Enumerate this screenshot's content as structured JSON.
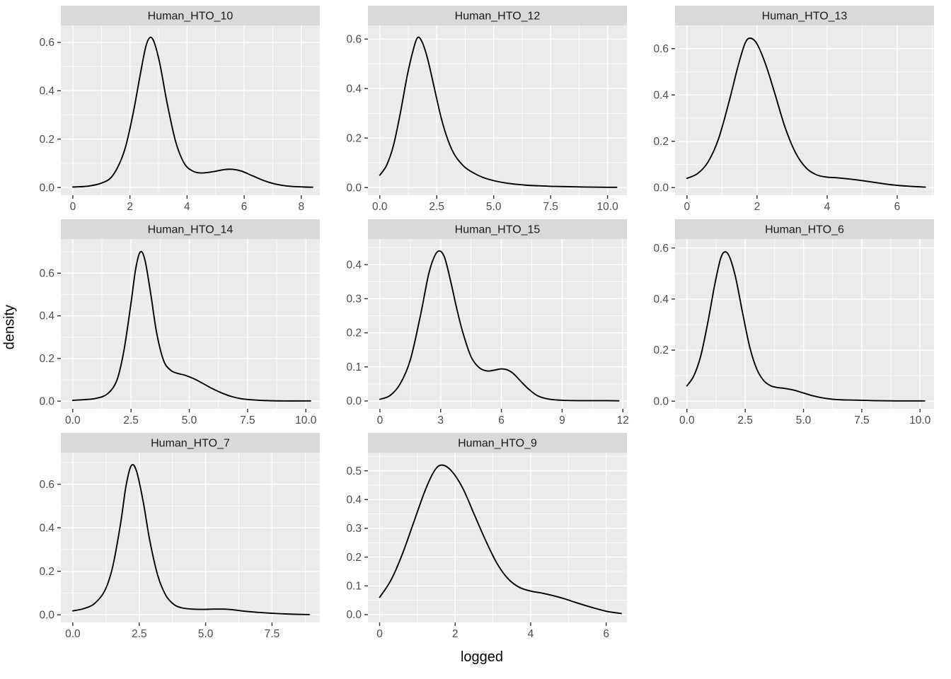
{
  "figure": {
    "ylab": "density",
    "xlab": "logged"
  },
  "style": {
    "panel_bg": "#EBEBEB",
    "strip_bg": "#D9D9D9",
    "grid_major": "#FFFFFF",
    "grid_minor": "#FFFFFF",
    "curve": "#000000",
    "axis_text": "#4D4D4D",
    "strip_text": "#1A1A1A",
    "tick_mark": "#333333"
  },
  "chart_data": [
    {
      "type": "line",
      "title": "Human_HTO_10",
      "xlim": [
        -0.42,
        8.65
      ],
      "ylim": [
        -0.032,
        0.67
      ],
      "xticks": {
        "values": [
          0,
          2,
          4,
          6,
          8
        ],
        "labels": [
          "0",
          "2",
          "4",
          "6",
          "8"
        ]
      },
      "yticks": {
        "values": [
          0,
          0.2,
          0.4,
          0.6
        ],
        "labels": [
          "0.0",
          "0.2",
          "0.4",
          "0.6"
        ]
      },
      "x": [
        0,
        0.5,
        1.0,
        1.4,
        1.8,
        2.1,
        2.35,
        2.55,
        2.7,
        2.85,
        3.05,
        3.3,
        3.6,
        3.9,
        4.2,
        4.5,
        4.9,
        5.3,
        5.6,
        5.9,
        6.3,
        6.7,
        7.1,
        7.6,
        8.1,
        8.4
      ],
      "y": [
        0.002,
        0.005,
        0.018,
        0.05,
        0.15,
        0.3,
        0.46,
        0.58,
        0.62,
        0.6,
        0.51,
        0.35,
        0.19,
        0.1,
        0.068,
        0.06,
        0.065,
        0.074,
        0.075,
        0.068,
        0.048,
        0.028,
        0.014,
        0.005,
        0.002,
        0.001
      ]
    },
    {
      "type": "line",
      "title": "Human_HTO_12",
      "xlim": [
        -0.52,
        10.85
      ],
      "ylim": [
        -0.031,
        0.655
      ],
      "xticks": {
        "values": [
          0,
          2.5,
          5,
          7.5,
          10
        ],
        "labels": [
          "0.0",
          "2.5",
          "5.0",
          "7.5",
          "10.0"
        ]
      },
      "yticks": {
        "values": [
          0,
          0.2,
          0.4,
          0.6
        ],
        "labels": [
          "0.0",
          "0.2",
          "0.4",
          "0.6"
        ]
      },
      "x": [
        0,
        0.3,
        0.6,
        0.9,
        1.2,
        1.45,
        1.65,
        1.85,
        2.1,
        2.4,
        2.7,
        3.0,
        3.3,
        3.7,
        4.1,
        4.5,
        5.0,
        5.5,
        6.0,
        6.5,
        7.0,
        7.5,
        8.0,
        9.0,
        10.0,
        10.4
      ],
      "y": [
        0.05,
        0.09,
        0.17,
        0.3,
        0.45,
        0.55,
        0.605,
        0.59,
        0.52,
        0.4,
        0.28,
        0.19,
        0.13,
        0.085,
        0.06,
        0.042,
        0.028,
        0.019,
        0.013,
        0.009,
        0.007,
        0.005,
        0.004,
        0.002,
        0.001,
        0.001
      ]
    },
    {
      "type": "line",
      "title": "Human_HTO_13",
      "xlim": [
        -0.34,
        7.05
      ],
      "ylim": [
        -0.033,
        0.7
      ],
      "xticks": {
        "values": [
          0,
          2,
          4,
          6
        ],
        "labels": [
          "0",
          "2",
          "4",
          "6"
        ]
      },
      "yticks": {
        "values": [
          0,
          0.2,
          0.4,
          0.6
        ],
        "labels": [
          "0.0",
          "0.2",
          "0.4",
          "0.6"
        ]
      },
      "x": [
        0,
        0.3,
        0.6,
        0.9,
        1.2,
        1.45,
        1.65,
        1.8,
        2.0,
        2.25,
        2.5,
        2.8,
        3.1,
        3.4,
        3.7,
        4.0,
        4.3,
        4.7,
        5.1,
        5.5,
        5.9,
        6.3,
        6.8
      ],
      "y": [
        0.04,
        0.06,
        0.11,
        0.21,
        0.37,
        0.52,
        0.62,
        0.645,
        0.62,
        0.53,
        0.41,
        0.26,
        0.15,
        0.085,
        0.055,
        0.045,
        0.042,
        0.036,
        0.028,
        0.019,
        0.011,
        0.006,
        0.002
      ]
    },
    {
      "type": "line",
      "title": "Human_HTO_14",
      "xlim": [
        -0.51,
        10.6
      ],
      "ylim": [
        -0.036,
        0.76
      ],
      "xticks": {
        "values": [
          0,
          2.5,
          5,
          7.5,
          10
        ],
        "labels": [
          "0.0",
          "2.5",
          "5.0",
          "7.5",
          "10.0"
        ]
      },
      "yticks": {
        "values": [
          0,
          0.2,
          0.4,
          0.6
        ],
        "labels": [
          "0.0",
          "0.2",
          "0.4",
          "0.6"
        ]
      },
      "x": [
        0,
        0.5,
        1.0,
        1.5,
        1.9,
        2.2,
        2.5,
        2.7,
        2.9,
        3.1,
        3.35,
        3.6,
        3.9,
        4.2,
        4.5,
        4.8,
        5.2,
        5.6,
        6.0,
        6.4,
        6.8,
        7.2,
        7.7,
        8.2,
        9.0,
        10.0,
        10.2
      ],
      "y": [
        0.004,
        0.007,
        0.013,
        0.035,
        0.1,
        0.24,
        0.46,
        0.62,
        0.7,
        0.66,
        0.5,
        0.32,
        0.19,
        0.145,
        0.13,
        0.122,
        0.105,
        0.082,
        0.058,
        0.038,
        0.022,
        0.012,
        0.006,
        0.003,
        0.001,
        0.001,
        0.001
      ]
    },
    {
      "type": "line",
      "title": "Human_HTO_15",
      "xlim": [
        -0.59,
        12.2
      ],
      "ylim": [
        -0.023,
        0.475
      ],
      "xticks": {
        "values": [
          0,
          3,
          6,
          9,
          12
        ],
        "labels": [
          "0",
          "3",
          "6",
          "9",
          "12"
        ]
      },
      "yticks": {
        "values": [
          0,
          0.1,
          0.2,
          0.3,
          0.4
        ],
        "labels": [
          "0.0",
          "0.1",
          "0.2",
          "0.3",
          "0.4"
        ]
      },
      "x": [
        0,
        0.5,
        1.0,
        1.5,
        2.0,
        2.4,
        2.7,
        2.95,
        3.2,
        3.5,
        3.8,
        4.1,
        4.5,
        4.9,
        5.3,
        5.7,
        6.0,
        6.3,
        6.6,
        7.0,
        7.4,
        7.8,
        8.3,
        9.0,
        10.0,
        11.0,
        11.8
      ],
      "y": [
        0.005,
        0.016,
        0.05,
        0.12,
        0.25,
        0.37,
        0.425,
        0.44,
        0.42,
        0.35,
        0.27,
        0.2,
        0.13,
        0.098,
        0.088,
        0.091,
        0.094,
        0.091,
        0.08,
        0.055,
        0.032,
        0.015,
        0.006,
        0.002,
        0.001,
        0.001,
        0.0005
      ]
    },
    {
      "type": "line",
      "title": "Human_HTO_6",
      "xlim": [
        -0.51,
        10.6
      ],
      "ylim": [
        -0.03,
        0.635
      ],
      "xticks": {
        "values": [
          0,
          2.5,
          5,
          7.5,
          10
        ],
        "labels": [
          "0.0",
          "2.5",
          "5.0",
          "7.5",
          "10.0"
        ]
      },
      "yticks": {
        "values": [
          0,
          0.2,
          0.4,
          0.6
        ],
        "labels": [
          "0.0",
          "0.2",
          "0.4",
          "0.6"
        ]
      },
      "x": [
        0,
        0.3,
        0.6,
        0.9,
        1.2,
        1.45,
        1.65,
        1.85,
        2.1,
        2.4,
        2.7,
        3.0,
        3.3,
        3.6,
        3.9,
        4.2,
        4.6,
        5.0,
        5.4,
        5.8,
        6.2,
        6.7,
        7.2,
        8.0,
        9.0,
        10.0,
        10.2
      ],
      "y": [
        0.06,
        0.1,
        0.18,
        0.31,
        0.46,
        0.56,
        0.585,
        0.56,
        0.48,
        0.34,
        0.21,
        0.125,
        0.08,
        0.06,
        0.053,
        0.05,
        0.043,
        0.032,
        0.021,
        0.013,
        0.008,
        0.005,
        0.004,
        0.002,
        0.001,
        0.001,
        0.001
      ]
    },
    {
      "type": "line",
      "title": "Human_HTO_7",
      "xlim": [
        -0.45,
        9.3
      ],
      "ylim": [
        -0.035,
        0.745
      ],
      "xticks": {
        "values": [
          0,
          2.5,
          5,
          7.5
        ],
        "labels": [
          "0.0",
          "2.5",
          "5.0",
          "7.5"
        ]
      },
      "yticks": {
        "values": [
          0,
          0.2,
          0.4,
          0.6
        ],
        "labels": [
          "0.0",
          "0.2",
          "0.4",
          "0.6"
        ]
      },
      "x": [
        0,
        0.4,
        0.8,
        1.2,
        1.5,
        1.8,
        2.0,
        2.2,
        2.4,
        2.65,
        2.9,
        3.2,
        3.5,
        3.8,
        4.1,
        4.5,
        4.9,
        5.3,
        5.7,
        6.1,
        6.5,
        7.0,
        7.5,
        8.0,
        8.5,
        8.9
      ],
      "y": [
        0.018,
        0.028,
        0.05,
        0.11,
        0.22,
        0.42,
        0.59,
        0.685,
        0.66,
        0.52,
        0.34,
        0.18,
        0.09,
        0.048,
        0.032,
        0.026,
        0.025,
        0.026,
        0.026,
        0.022,
        0.016,
        0.011,
        0.007,
        0.004,
        0.002,
        0.001
      ]
    },
    {
      "type": "line",
      "title": "Human_HTO_9",
      "xlim": [
        -0.31,
        6.55
      ],
      "ylim": [
        -0.027,
        0.563
      ],
      "xticks": {
        "values": [
          0,
          2,
          4,
          6
        ],
        "labels": [
          "0",
          "2",
          "4",
          "6"
        ]
      },
      "yticks": {
        "values": [
          0,
          0.1,
          0.2,
          0.3,
          0.4,
          0.5
        ],
        "labels": [
          "0.0",
          "0.1",
          "0.2",
          "0.3",
          "0.4",
          "0.5"
        ]
      },
      "x": [
        0,
        0.3,
        0.6,
        0.9,
        1.2,
        1.45,
        1.65,
        1.9,
        2.2,
        2.5,
        2.8,
        3.1,
        3.4,
        3.7,
        4.0,
        4.3,
        4.6,
        4.9,
        5.2,
        5.6,
        6.0,
        6.4
      ],
      "y": [
        0.06,
        0.12,
        0.21,
        0.32,
        0.43,
        0.5,
        0.52,
        0.5,
        0.44,
        0.35,
        0.26,
        0.18,
        0.125,
        0.095,
        0.082,
        0.075,
        0.066,
        0.055,
        0.042,
        0.026,
        0.012,
        0.004
      ]
    }
  ]
}
